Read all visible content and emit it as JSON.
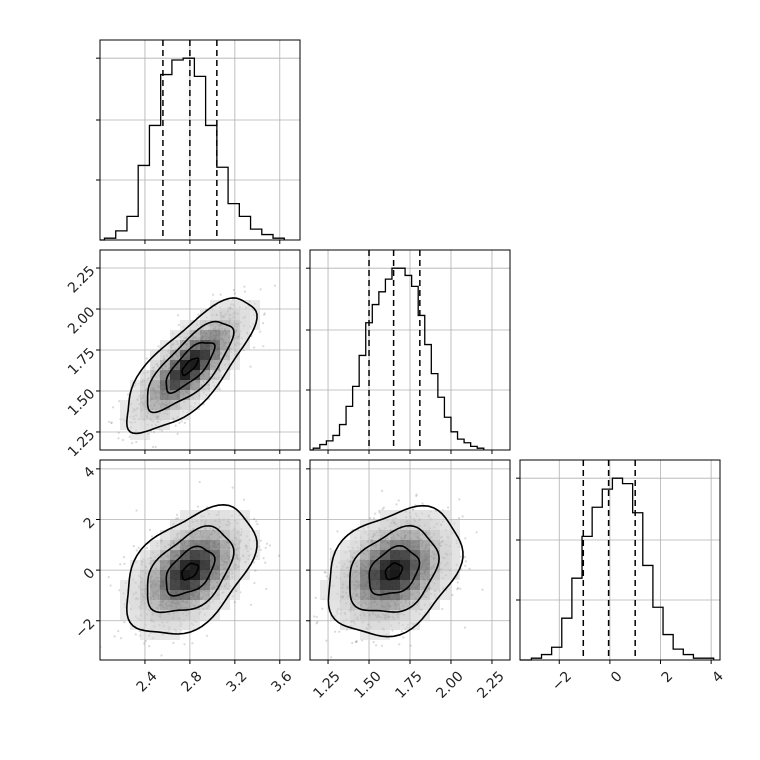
{
  "chart_data": {
    "type": "corner",
    "parameters": [
      {
        "ticks": [
          "2.4",
          "2.8",
          "3.2",
          "3.6"
        ],
        "ticks_v": [
          2.4,
          2.8,
          3.2,
          3.6
        ],
        "range": [
          2.0,
          3.78
        ],
        "quantiles": [
          2.56,
          2.8,
          3.04
        ]
      },
      {
        "ticks": [
          "1.25",
          "1.50",
          "1.75",
          "2.00",
          "2.25"
        ],
        "ticks_v": [
          1.25,
          1.5,
          1.75,
          2.0,
          2.25
        ],
        "range": [
          1.14,
          2.36
        ],
        "quantiles": [
          1.5,
          1.65,
          1.81
        ]
      },
      {
        "ticks": [
          "−2",
          "0",
          "2",
          "4"
        ],
        "ticks_v": [
          -2,
          0,
          2,
          4
        ],
        "range": [
          -3.55,
          4.35
        ],
        "quantiles": [
          -1.05,
          -0.05,
          1.0
        ]
      }
    ],
    "histograms": [
      {
        "edges": [
          2.04,
          2.14,
          2.24,
          2.34,
          2.44,
          2.54,
          2.64,
          2.74,
          2.84,
          2.94,
          3.04,
          3.14,
          3.24,
          3.34,
          3.44,
          3.54,
          3.64
        ],
        "counts": [
          1,
          5,
          13,
          41,
          63,
          91,
          99,
          100,
          90,
          63,
          40,
          20,
          13,
          6,
          3,
          1
        ],
        "ymax": 110
      },
      {
        "edges": [
          1.16,
          1.2,
          1.24,
          1.28,
          1.32,
          1.36,
          1.4,
          1.44,
          1.48,
          1.52,
          1.56,
          1.6,
          1.64,
          1.68,
          1.72,
          1.76,
          1.8,
          1.84,
          1.88,
          1.92,
          1.96,
          2.0,
          2.04,
          2.08,
          2.12,
          2.16,
          2.2
        ],
        "counts": [
          1,
          3,
          5,
          8,
          14,
          24,
          35,
          52,
          70,
          80,
          87,
          94,
          100,
          100,
          96,
          90,
          74,
          58,
          42,
          29,
          18,
          10,
          6,
          4,
          2,
          1
        ],
        "ymax": 110
      },
      {
        "edges": [
          -3.1,
          -2.7,
          -2.3,
          -1.9,
          -1.5,
          -1.1,
          -0.7,
          -0.3,
          0.1,
          0.5,
          0.9,
          1.3,
          1.7,
          2.1,
          2.5,
          2.9,
          3.3,
          3.7,
          4.1
        ],
        "counts": [
          1,
          3,
          7,
          23,
          45,
          68,
          84,
          94,
          100,
          97,
          81,
          52,
          29,
          14,
          6,
          3,
          1,
          1
        ],
        "ymax": 110
      }
    ],
    "pairs": [
      {
        "row": 1,
        "col": 0,
        "x": 2.8,
        "y": 1.65,
        "sx": 0.24,
        "sy": 0.17,
        "rho": 0.75
      },
      {
        "row": 2,
        "col": 0,
        "x": 2.8,
        "y": -0.05,
        "sx": 0.24,
        "sy": 1.05,
        "rho": 0.45
      },
      {
        "row": 2,
        "col": 1,
        "x": 1.65,
        "y": -0.05,
        "sx": 0.17,
        "sy": 1.05,
        "rho": 0.3
      }
    ],
    "contour_levels": [
      0.3,
      0.9,
      1.6,
      2.4
    ],
    "grid": true,
    "quantile_style": "dashed"
  }
}
